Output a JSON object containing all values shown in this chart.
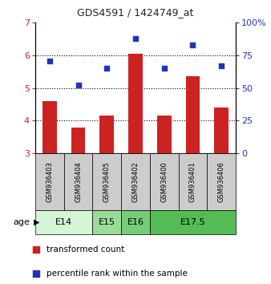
{
  "title": "GDS4591 / 1424749_at",
  "samples": [
    "GSM936403",
    "GSM936404",
    "GSM936405",
    "GSM936402",
    "GSM936400",
    "GSM936401",
    "GSM936406"
  ],
  "bar_values": [
    4.6,
    3.8,
    4.15,
    6.05,
    4.15,
    5.35,
    4.4
  ],
  "scatter_values": [
    71,
    52,
    65,
    88,
    65,
    83,
    67
  ],
  "ylim_left": [
    3,
    7
  ],
  "ylim_right": [
    0,
    100
  ],
  "yticks_left": [
    3,
    4,
    5,
    6,
    7
  ],
  "yticks_right": [
    0,
    25,
    50,
    75,
    100
  ],
  "bar_color": "#cc2222",
  "scatter_color": "#2233bb",
  "age_groups": [
    {
      "label": "E14",
      "start": 0,
      "end": 1,
      "color": "#d6f5d6"
    },
    {
      "label": "E15",
      "start": 2,
      "end": 2,
      "color": "#99dd99"
    },
    {
      "label": "E16",
      "start": 3,
      "end": 3,
      "color": "#77cc77"
    },
    {
      "label": "E17.5",
      "start": 4,
      "end": 6,
      "color": "#55bb55"
    }
  ],
  "legend_bar_label": "transformed count",
  "legend_scatter_label": "percentile rank within the sample",
  "age_label": "age",
  "left_axis_color": "#cc2222",
  "right_axis_color": "#2233bb",
  "sample_box_color": "#cccccc",
  "bar_bottom": 3,
  "bar_width": 0.5
}
